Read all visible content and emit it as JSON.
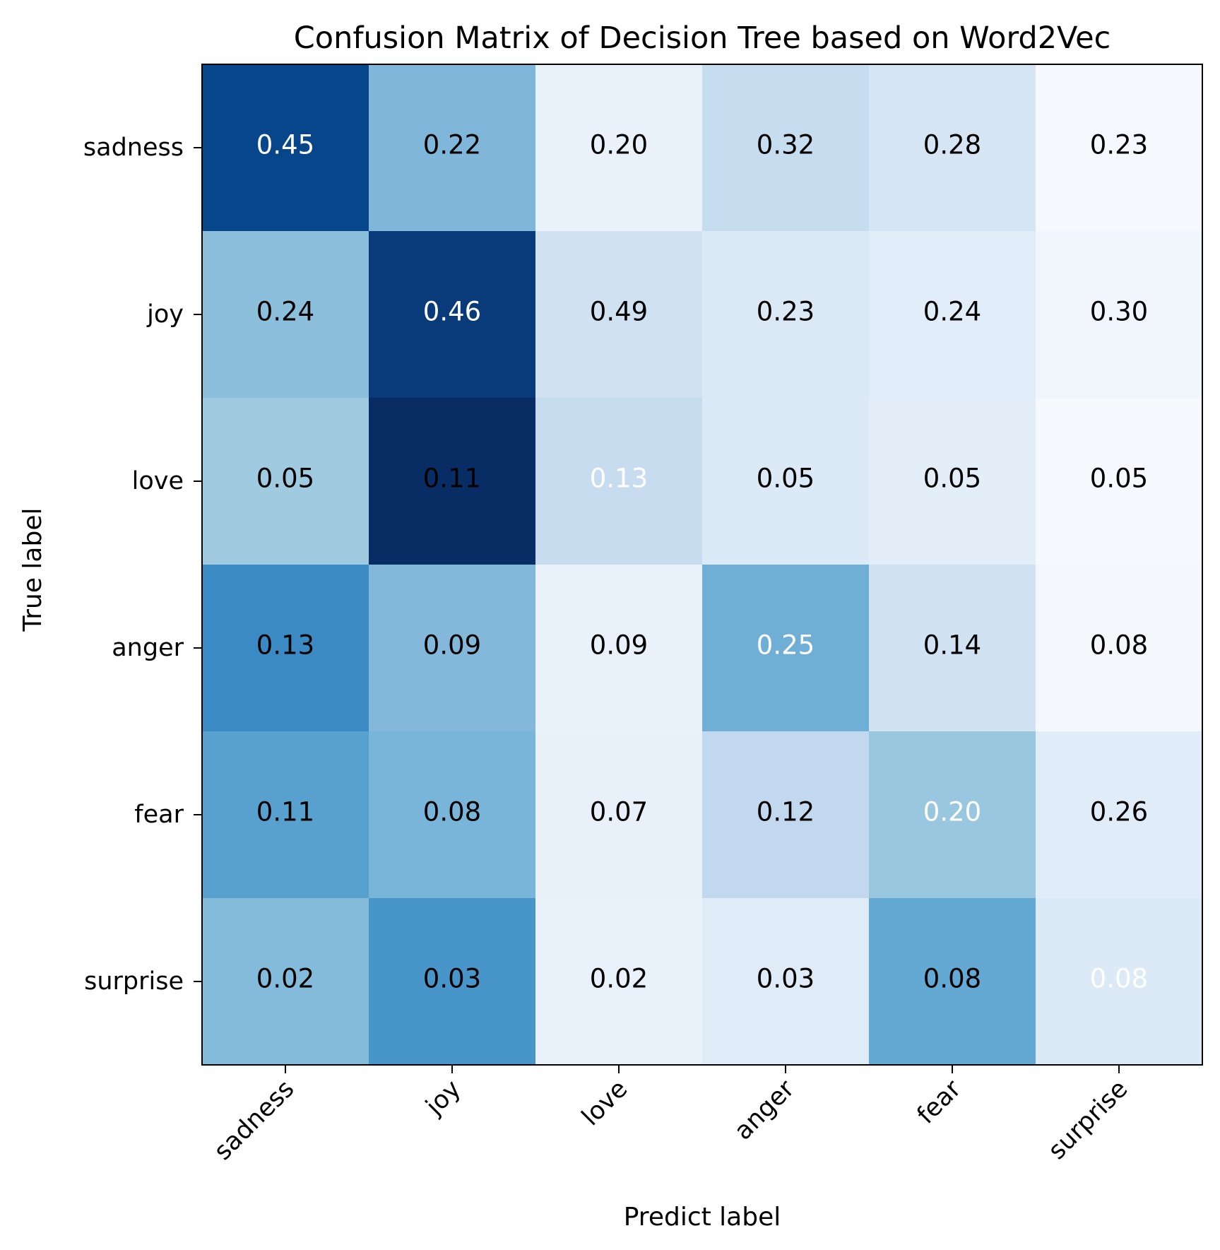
{
  "chart_data": {
    "type": "heatmap",
    "title": "Confusion Matrix of Decision Tree based on Word2Vec",
    "xlabel": "Predict label",
    "ylabel": "True label",
    "x_categories": [
      "sadness",
      "joy",
      "love",
      "anger",
      "fear",
      "surprise"
    ],
    "y_categories": [
      "sadness",
      "joy",
      "love",
      "anger",
      "fear",
      "surprise"
    ],
    "values": [
      [
        0.45,
        0.22,
        0.2,
        0.32,
        0.28,
        0.23
      ],
      [
        0.24,
        0.46,
        0.49,
        0.23,
        0.24,
        0.3
      ],
      [
        0.05,
        0.11,
        0.13,
        0.05,
        0.05,
        0.05
      ],
      [
        0.13,
        0.09,
        0.09,
        0.25,
        0.14,
        0.08
      ],
      [
        0.11,
        0.08,
        0.07,
        0.12,
        0.2,
        0.26
      ],
      [
        0.02,
        0.03,
        0.02,
        0.03,
        0.08,
        0.08
      ]
    ],
    "value_format": "2 decimals",
    "colormap": "Blues",
    "cell_colors": [
      [
        "#08468c",
        "#7fb6d9",
        "#e9f2fa",
        "#c6dcef",
        "#d6e5f4",
        "#f5f9fe"
      ],
      [
        "#8bbfdc",
        "#093a7a",
        "#d0e1f2",
        "#dbe8f5",
        "#e1edf8",
        "#f0f6fc"
      ],
      [
        "#9fcae0",
        "#082d64",
        "#c8dcf0",
        "#dce9f6",
        "#e3eef9",
        "#f6faff"
      ],
      [
        "#3b8ac3",
        "#83b8da",
        "#e9f2fa",
        "#6fafd6",
        "#d1e2f3",
        "#f4f8fd"
      ],
      [
        "#58a1cf",
        "#79b5d9",
        "#e8f1fa",
        "#c2d8ee",
        "#9ac7e0",
        "#e0ecf8"
      ],
      [
        "#84bbdb",
        "#4896c9",
        "#e9f2fa",
        "#dfebf7",
        "#64a9d3",
        "#dce9f6"
      ]
    ],
    "text_colors": [
      [
        "#ffffff",
        "#000000",
        "#000000",
        "#000000",
        "#000000",
        "#000000"
      ],
      [
        "#000000",
        "#ffffff",
        "#000000",
        "#000000",
        "#000000",
        "#000000"
      ],
      [
        "#000000",
        "#000000",
        "#ffffff",
        "#000000",
        "#000000",
        "#000000"
      ],
      [
        "#000000",
        "#000000",
        "#000000",
        "#ffffff",
        "#000000",
        "#000000"
      ],
      [
        "#000000",
        "#000000",
        "#000000",
        "#000000",
        "#ffffff",
        "#000000"
      ],
      [
        "#000000",
        "#000000",
        "#000000",
        "#000000",
        "#000000",
        "#ffffff"
      ]
    ],
    "grid": false,
    "legend": "none",
    "colorbar": false
  }
}
